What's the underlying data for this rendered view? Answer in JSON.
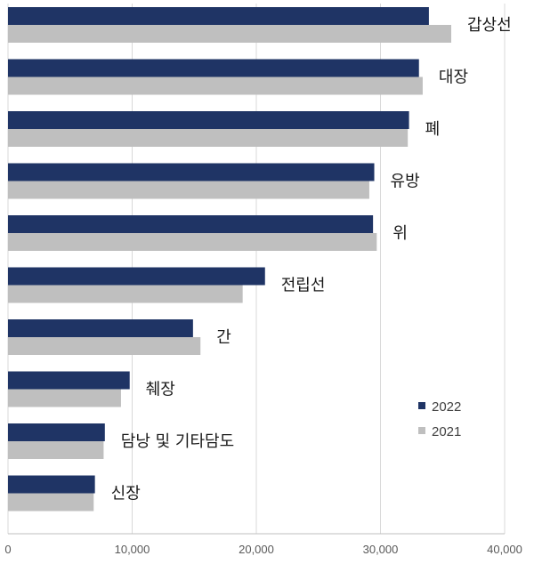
{
  "chart_data": {
    "type": "bar",
    "orientation": "horizontal",
    "categories": [
      "갑상선",
      "대장",
      "폐",
      "유방",
      "위",
      "전립선",
      "간",
      "췌장",
      "담낭 및 기타담도",
      "신장"
    ],
    "series": [
      {
        "name": "2022",
        "color": "#1f3465",
        "values": [
          33900,
          33100,
          32300,
          29500,
          29400,
          20700,
          14900,
          9800,
          7800,
          7000
        ]
      },
      {
        "name": "2021",
        "color": "#bfbfbf",
        "values": [
          35700,
          33400,
          32200,
          29100,
          29700,
          18900,
          15500,
          9100,
          7700,
          6900
        ]
      }
    ],
    "xlim": [
      0,
      40000
    ],
    "xticks": [
      "0",
      "10,000",
      "20,000",
      "30,000",
      "40,000"
    ],
    "grid": "vertical",
    "legend_position": "right"
  }
}
